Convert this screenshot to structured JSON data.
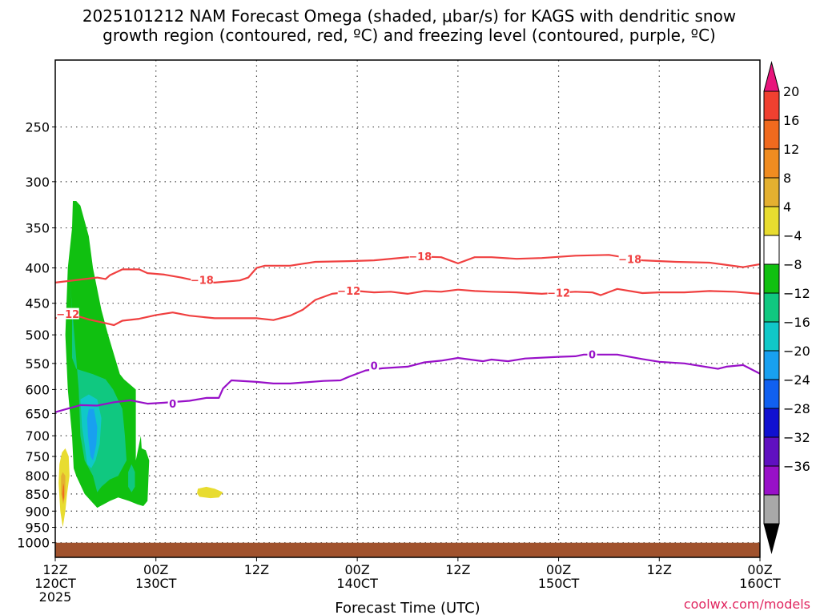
{
  "chart_data": {
    "type": "contour",
    "title_line1": "2025101212 NAM Forecast Omega (shaded, μbar/s) for KAGS with dendritic snow",
    "title_line2": "growth region (contoured, red, ºC) and freezing level (contoured, purple, ºC)",
    "xlabel": "Forecast Time (UTC)",
    "credit": "coolwx.com/models",
    "credit_color": "#e0245e",
    "y_axis": {
      "scale": "log-pressure-inverted",
      "ylim": [
        1050,
        200
      ],
      "ticks": [
        250,
        300,
        350,
        400,
        450,
        500,
        550,
        600,
        650,
        700,
        750,
        800,
        850,
        900,
        950,
        1000
      ]
    },
    "x_axis": {
      "xlim": [
        0,
        84
      ],
      "ticks": [
        {
          "hour": 0,
          "line1": "12Z",
          "line2": "120CT",
          "line3": "2025"
        },
        {
          "hour": 12,
          "line1": "00Z",
          "line2": "130CT",
          "line3": ""
        },
        {
          "hour": 24,
          "line1": "12Z",
          "line2": "",
          "line3": ""
        },
        {
          "hour": 36,
          "line1": "00Z",
          "line2": "140CT",
          "line3": ""
        },
        {
          "hour": 48,
          "line1": "12Z",
          "line2": "",
          "line3": ""
        },
        {
          "hour": 60,
          "line1": "00Z",
          "line2": "150CT",
          "line3": ""
        },
        {
          "hour": 72,
          "line1": "12Z",
          "line2": "",
          "line3": ""
        },
        {
          "hour": 84,
          "line1": "00Z",
          "line2": "160CT",
          "line3": ""
        }
      ]
    },
    "grid": true,
    "colorbar": {
      "position": "right",
      "labels": [
        "20",
        "16",
        "12",
        "8",
        "4",
        "−4",
        "−8",
        "−12",
        "−16",
        "−20",
        "−24",
        "−28",
        "−32",
        "−36"
      ],
      "colors": [
        "#e8157c",
        "#f04030",
        "#f06a1e",
        "#f08c20",
        "#e4b030",
        "#e8dc30",
        "#ffffff",
        "#10c010",
        "#10c880",
        "#10c8c8",
        "#18a0f0",
        "#1060f0",
        "#1010d0",
        "#6010c0",
        "#9810c8",
        "#a8a8a8",
        "#000000"
      ]
    },
    "contours": [
      {
        "id": "dgz-top",
        "color": "#f04040",
        "labels": [
          {
            "text": "−18",
            "hour": 43.5,
            "p": 385
          },
          {
            "text": "−18",
            "hour": 17.5,
            "p": 417
          },
          {
            "text": "−18",
            "hour": 68.5,
            "p": 389
          }
        ],
        "points": [
          [
            0,
            420
          ],
          [
            5,
            413
          ],
          [
            6,
            415
          ],
          [
            6.5,
            410
          ],
          [
            8,
            402
          ],
          [
            10,
            402
          ],
          [
            11,
            407
          ],
          [
            13,
            409
          ],
          [
            15,
            413
          ],
          [
            17,
            418
          ],
          [
            19,
            420
          ],
          [
            22,
            417
          ],
          [
            23,
            413
          ],
          [
            24,
            400
          ],
          [
            25,
            397
          ],
          [
            28,
            397
          ],
          [
            31,
            392
          ],
          [
            35,
            391
          ],
          [
            38,
            390
          ],
          [
            43,
            385
          ],
          [
            46,
            386
          ],
          [
            48,
            394
          ],
          [
            50,
            386
          ],
          [
            52,
            386
          ],
          [
            55,
            388
          ],
          [
            58,
            387
          ],
          [
            62,
            384
          ],
          [
            66,
            383
          ],
          [
            70,
            390
          ],
          [
            74,
            392
          ],
          [
            78,
            393
          ],
          [
            82,
            399
          ],
          [
            84,
            395
          ]
        ]
      },
      {
        "id": "dgz-bottom",
        "color": "#f04040",
        "labels": [
          {
            "text": "−12",
            "hour": 1.5,
            "p": 467
          },
          {
            "text": "−12",
            "hour": 35,
            "p": 432
          },
          {
            "text": "−12",
            "hour": 60,
            "p": 435
          }
        ],
        "points": [
          [
            0,
            473
          ],
          [
            2,
            467
          ],
          [
            4,
            475
          ],
          [
            6,
            481
          ],
          [
            7,
            484
          ],
          [
            8,
            477
          ],
          [
            10,
            474
          ],
          [
            12,
            468
          ],
          [
            14,
            464
          ],
          [
            16,
            469
          ],
          [
            19,
            473
          ],
          [
            24,
            473
          ],
          [
            26,
            476
          ],
          [
            28,
            469
          ],
          [
            29.5,
            460
          ],
          [
            31,
            445
          ],
          [
            33,
            436
          ],
          [
            36,
            432
          ],
          [
            38,
            434
          ],
          [
            40,
            433
          ],
          [
            42,
            436
          ],
          [
            44,
            432
          ],
          [
            46,
            433
          ],
          [
            48,
            430
          ],
          [
            50,
            432
          ],
          [
            52,
            433
          ],
          [
            55,
            434
          ],
          [
            58,
            436
          ],
          [
            62,
            433
          ],
          [
            64,
            434
          ],
          [
            65,
            438
          ],
          [
            67,
            429
          ],
          [
            70,
            435
          ],
          [
            72,
            434
          ],
          [
            75,
            434
          ],
          [
            78,
            432
          ],
          [
            81,
            433
          ],
          [
            84,
            436
          ]
        ]
      },
      {
        "id": "freezing-level",
        "color": "#9810c8",
        "labels": [
          {
            "text": "0",
            "hour": 14,
            "p": 630
          },
          {
            "text": "0",
            "hour": 38,
            "p": 555
          },
          {
            "text": "0",
            "hour": 64,
            "p": 534
          }
        ],
        "points": [
          [
            0,
            647
          ],
          [
            3,
            632
          ],
          [
            5,
            633
          ],
          [
            7,
            626
          ],
          [
            9,
            622
          ],
          [
            11,
            629
          ],
          [
            13,
            627
          ],
          [
            16,
            623
          ],
          [
            18,
            617
          ],
          [
            19.5,
            617
          ],
          [
            20,
            598
          ],
          [
            21,
            582
          ],
          [
            24,
            585
          ],
          [
            26,
            588
          ],
          [
            28,
            588
          ],
          [
            32,
            583
          ],
          [
            34,
            582
          ],
          [
            35,
            575
          ],
          [
            37,
            563
          ],
          [
            39,
            559
          ],
          [
            42,
            556
          ],
          [
            44,
            548
          ],
          [
            46,
            545
          ],
          [
            48,
            540
          ],
          [
            49,
            542
          ],
          [
            51,
            546
          ],
          [
            52,
            543
          ],
          [
            54,
            546
          ],
          [
            56,
            541
          ],
          [
            60,
            538
          ],
          [
            62,
            537
          ],
          [
            63,
            534
          ],
          [
            67,
            534
          ],
          [
            70,
            542
          ],
          [
            72,
            547
          ],
          [
            75,
            550
          ],
          [
            79,
            560
          ],
          [
            80,
            556
          ],
          [
            82,
            553
          ],
          [
            84,
            569
          ]
        ]
      }
    ],
    "omega_regions": [
      {
        "level": "−8",
        "color": "#10c010",
        "outline": [
          [
            2.1,
            320
          ],
          [
            2.5,
            320
          ],
          [
            3,
            325
          ],
          [
            4,
            360
          ],
          [
            4.5,
            400
          ],
          [
            5.1,
            435
          ],
          [
            5.5,
            460
          ],
          [
            6.3,
            500
          ],
          [
            7.7,
            570
          ],
          [
            8.2,
            580
          ],
          [
            9.6,
            600
          ],
          [
            9.6,
            760
          ],
          [
            10.2,
            700
          ],
          [
            10.3,
            730
          ],
          [
            10.8,
            735
          ],
          [
            11.2,
            760
          ],
          [
            11,
            870
          ],
          [
            10.5,
            885
          ],
          [
            9.8,
            880
          ],
          [
            8.8,
            870
          ],
          [
            7.5,
            860
          ],
          [
            6.5,
            870
          ],
          [
            5,
            890
          ],
          [
            3.5,
            850
          ],
          [
            2.5,
            800
          ],
          [
            2.2,
            780
          ],
          [
            2,
            700
          ],
          [
            1.5,
            600
          ],
          [
            1.2,
            500
          ],
          [
            1.5,
            400
          ],
          [
            2,
            350
          ]
        ]
      },
      {
        "level": "−12",
        "color": "#10c880",
        "outline": [
          [
            1.7,
            410
          ],
          [
            2,
            460
          ],
          [
            2,
            540
          ],
          [
            2.5,
            560
          ],
          [
            4.5,
            570
          ],
          [
            6,
            580
          ],
          [
            6.9,
            600
          ],
          [
            8,
            640
          ],
          [
            8.3,
            700
          ],
          [
            8.5,
            760
          ],
          [
            7.5,
            800
          ],
          [
            6.5,
            810
          ],
          [
            5.5,
            830
          ],
          [
            5,
            845
          ],
          [
            4.5,
            800
          ],
          [
            3.5,
            760
          ],
          [
            3,
            700
          ],
          [
            2.8,
            600
          ]
        ]
      },
      {
        "level": "−12",
        "color": "#10c880",
        "outline": [
          [
            8.7,
            790
          ],
          [
            9.1,
            770
          ],
          [
            9.5,
            790
          ],
          [
            9.5,
            830
          ],
          [
            9.1,
            845
          ],
          [
            8.7,
            830
          ]
        ]
      },
      {
        "level": "−16",
        "color": "#10c8c8",
        "outline": [
          [
            3,
            620
          ],
          [
            4,
            610
          ],
          [
            5,
            620
          ],
          [
            5.5,
            660
          ],
          [
            5.3,
            720
          ],
          [
            4.8,
            760
          ],
          [
            4.3,
            780
          ],
          [
            3.8,
            770
          ],
          [
            3.5,
            720
          ],
          [
            3.2,
            680
          ]
        ]
      },
      {
        "level": "−20",
        "color": "#18a0f0",
        "outline": [
          [
            4,
            640
          ],
          [
            4.6,
            640
          ],
          [
            5,
            680
          ],
          [
            4.9,
            720
          ],
          [
            4.5,
            760
          ],
          [
            4.2,
            750
          ],
          [
            3.9,
            700
          ],
          [
            3.8,
            660
          ]
        ]
      },
      {
        "level": "4",
        "color": "#e8dc30",
        "outline": [
          [
            0.8,
            740
          ],
          [
            1.2,
            730
          ],
          [
            1.6,
            750
          ],
          [
            1.7,
            800
          ],
          [
            1.4,
            850
          ],
          [
            1.2,
            900
          ],
          [
            0.9,
            950
          ],
          [
            0.6,
            900
          ],
          [
            0.4,
            820
          ],
          [
            0.5,
            770
          ]
        ]
      },
      {
        "level": "8",
        "color": "#e4b030",
        "outline": [
          [
            0.9,
            790
          ],
          [
            1.2,
            800
          ],
          [
            1.2,
            850
          ],
          [
            0.95,
            880
          ],
          [
            0.7,
            850
          ],
          [
            0.7,
            800
          ]
        ]
      },
      {
        "level": "12",
        "color": "#f06a1e",
        "outline": [
          [
            0.95,
            820
          ],
          [
            1.05,
            830
          ],
          [
            1.05,
            860
          ],
          [
            0.95,
            870
          ],
          [
            0.85,
            850
          ]
        ]
      },
      {
        "level": "4",
        "color": "#e8dc30",
        "outline": [
          [
            17,
            835
          ],
          [
            18,
            830
          ],
          [
            19,
            835
          ],
          [
            20,
            845
          ],
          [
            19.5,
            860
          ],
          [
            18.5,
            862
          ],
          [
            17.2,
            858
          ],
          [
            16.9,
            848
          ]
        ]
      }
    ],
    "terrain": {
      "color": "#a0522d",
      "top_p": 1000
    }
  }
}
